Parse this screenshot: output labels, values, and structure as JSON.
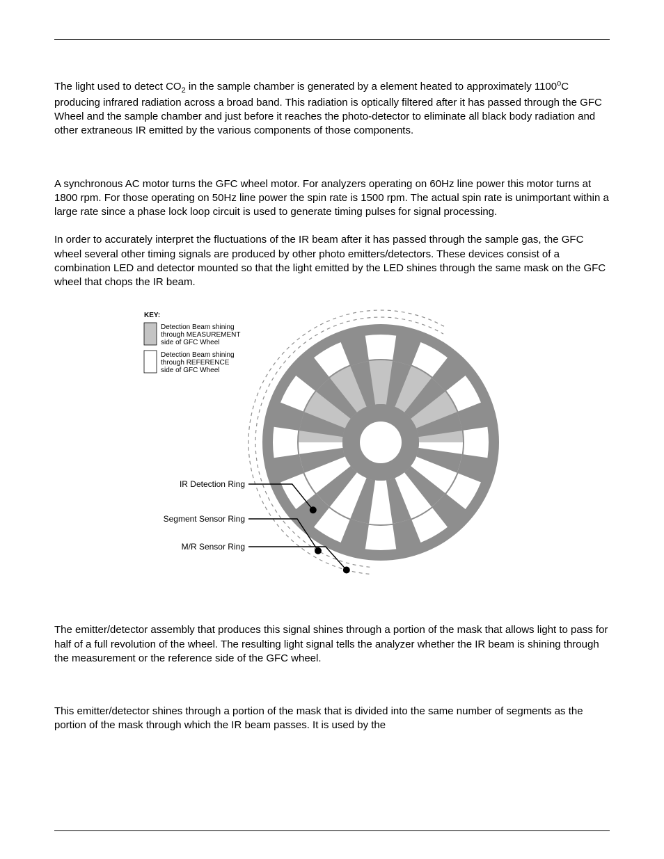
{
  "colors": {
    "wheel_dark": "#8e8e8e",
    "wheel_light": "#c4c4c4",
    "text": "#000000",
    "bg": "#ffffff",
    "dash": "#8e8e8e"
  },
  "paragraphs": {
    "p1_before_sub": "The light used to detect CO",
    "p1_sub": "2",
    "p1_after_sub_before_sup": " in the sample chamber is generated by a element heated to approximately 1100",
    "p1_sup": "o",
    "p1_after_sup": "C producing infrared radiation across a broad band. This radiation is optically filtered after it has passed through the GFC Wheel and the sample chamber and just before it reaches the photo-detector to eliminate all black body radiation and other extraneous IR emitted by the various components of those components.",
    "p2": "A synchronous AC motor turns the GFC wheel motor.  For analyzers operating on 60Hz line power this motor turns at 1800 rpm.  For those operating on 50Hz line power the spin rate is 1500 rpm.  The actual spin rate is unimportant within a large rate since a phase lock loop circuit is used to generate timing pulses for signal processing.",
    "p3": "In order to accurately interpret the fluctuations of the IR beam after it has passed through the sample gas, the GFC wheel several other timing signals are produced by other photo emitters/detectors.  These devices consist of a combination LED and detector mounted so that the light emitted by the LED shines through the same mask on the GFC wheel that chops the IR beam.",
    "p4": "The emitter/detector assembly that produces this signal shines through a portion of the mask that allows light to pass for half of a full revolution of the wheel. The resulting light signal tells the analyzer whether the IR beam is shining through the measurement or the reference side of the GFC wheel.",
    "p5": "This emitter/detector shines through a portion of the mask that is divided into the same number of segments as the portion of the mask through which the IR beam passes.  It is used by the"
  },
  "figure": {
    "key_title": "KEY:",
    "key1_l1": "Detection Beam shining",
    "key1_l2": "through MEASUREMENT",
    "key1_l3": "side of GFC Wheel",
    "key2_l1": "Detection Beam shining",
    "key2_l2": "through REFERENCE",
    "key2_l3": "side of GFC Wheel",
    "label_ir": "IR Detection Ring",
    "label_seg": "Segment Sensor Ring",
    "label_mr": "M/R Sensor Ring",
    "num_segments": 12,
    "outer_r": 170,
    "rim_r": 160,
    "outer_slot_out": 155,
    "outer_slot_in": 120,
    "mid_band_out": 118,
    "mid_band_in": 55,
    "hub_r": 30,
    "mr_ring_r": 190,
    "seg_ring_r": 180
  }
}
